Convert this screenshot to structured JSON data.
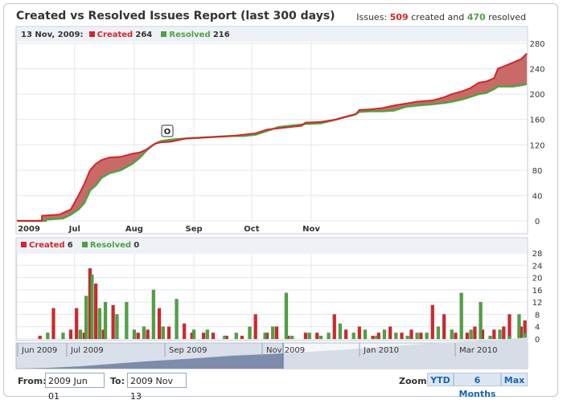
{
  "report": {
    "title": "Created vs Resolved Issues Report (last 300 days)",
    "summary_prefix": "Issues:",
    "created_count": "509",
    "summary_mid": "created and",
    "resolved_count": "470",
    "summary_suffix": "resolved"
  },
  "colors": {
    "created": "#d3262b",
    "resolved": "#4ea341",
    "fill": "#c0504d",
    "navigator": "#7e8cab"
  },
  "legend_top": {
    "date": "13 Nov, 2009:",
    "created_label": "Created",
    "created_value": "264",
    "resolved_label": "Resolved",
    "resolved_value": "216"
  },
  "legend_bottom": {
    "created_label": "Created",
    "created_value": "6",
    "resolved_label": "Resolved",
    "resolved_value": "0"
  },
  "flag_marker": "O",
  "navigator_labels": [
    "Jun 2009",
    "Jul 2009",
    "Sep 2009",
    "Nov 2009",
    "Jan 2010",
    "Mar 2010"
  ],
  "range": {
    "from_label": "From:",
    "from_value": "2009 Jun 01",
    "to_label": "To:",
    "to_value": "2009 Nov 13"
  },
  "zoom": {
    "label": "Zoom:",
    "buttons": [
      "YTD",
      "6 Months",
      "Max"
    ]
  },
  "chart_data": [
    {
      "type": "area",
      "title": "Created vs Resolved Issues Report (last 300 days)",
      "x_ticks": [
        "2009",
        "Jul",
        "Aug",
        "Sep",
        "Oct",
        "Nov"
      ],
      "y_ticks": [
        0,
        40,
        80,
        120,
        160,
        200,
        240,
        280
      ],
      "ylim": [
        0,
        280
      ],
      "grid": true,
      "x_unit": "days since 2009 Jun 01",
      "series": [
        {
          "name": "Created",
          "x": [
            0,
            13,
            13,
            22,
            28,
            32,
            35,
            38,
            41,
            44,
            48,
            54,
            60,
            64,
            67,
            70,
            72,
            75,
            80,
            88,
            94,
            100,
            106,
            112,
            118,
            124,
            130,
            136,
            142,
            148,
            150,
            158,
            166,
            172,
            176,
            178,
            184,
            190,
            196,
            202,
            208,
            216,
            222,
            226,
            232,
            236,
            240,
            244,
            248,
            250,
            254,
            258,
            262,
            265
          ],
          "values": [
            0,
            0,
            8,
            10,
            18,
            40,
            58,
            80,
            90,
            96,
            100,
            101,
            106,
            108,
            112,
            118,
            122,
            124,
            125,
            130,
            131,
            132,
            133,
            134,
            136,
            138,
            144,
            146,
            148,
            150,
            155,
            156,
            160,
            165,
            168,
            175,
            176,
            178,
            182,
            185,
            188,
            190,
            195,
            200,
            205,
            210,
            218,
            220,
            225,
            240,
            245,
            250,
            255,
            264
          ]
        },
        {
          "name": "Resolved",
          "x": [
            0,
            15,
            15,
            24,
            28,
            32,
            35,
            38,
            41,
            44,
            48,
            54,
            60,
            64,
            67,
            70,
            72,
            75,
            80,
            88,
            94,
            100,
            106,
            112,
            118,
            124,
            130,
            136,
            142,
            148,
            150,
            158,
            166,
            172,
            176,
            178,
            184,
            190,
            196,
            202,
            208,
            216,
            222,
            226,
            232,
            236,
            240,
            244,
            248,
            250,
            254,
            258,
            262,
            265
          ],
          "values": [
            0,
            0,
            2,
            4,
            10,
            18,
            28,
            48,
            56,
            68,
            75,
            80,
            90,
            100,
            110,
            118,
            122,
            126,
            128,
            130,
            131,
            132,
            133,
            134,
            134,
            136,
            142,
            148,
            150,
            152,
            153,
            154,
            160,
            165,
            168,
            172,
            173,
            173,
            174,
            180,
            182,
            184,
            186,
            188,
            192,
            196,
            200,
            202,
            208,
            212,
            212,
            212,
            214,
            216
          ]
        }
      ]
    },
    {
      "type": "bar",
      "y_ticks": [
        0,
        4,
        8,
        12,
        16,
        20,
        24,
        28
      ],
      "ylim": [
        0,
        28
      ],
      "grid": true,
      "x_unit": "days since 2009 Jun 01",
      "series": [
        {
          "name": "Created",
          "x": [
            12,
            19,
            28,
            31,
            35,
            38,
            41,
            45,
            50,
            63,
            68,
            74,
            79,
            87,
            91,
            97,
            102,
            109,
            117,
            124,
            130,
            135,
            141,
            150,
            156,
            165,
            171,
            178,
            185,
            188,
            194,
            200,
            205,
            210,
            216,
            222,
            228,
            234,
            238,
            242,
            248,
            253,
            256,
            262,
            264
          ],
          "values": [
            1,
            10,
            3,
            10,
            2,
            23,
            18,
            3,
            11,
            2,
            3,
            10,
            4,
            5,
            2,
            2,
            2,
            1,
            1,
            8,
            2,
            4,
            1,
            2,
            2,
            8,
            3,
            4,
            1,
            2,
            4,
            2,
            3,
            2,
            11,
            8,
            2,
            2,
            4,
            3,
            3,
            4,
            8,
            4,
            6
          ]
        },
        {
          "name": "Resolved",
          "x": [
            16,
            24,
            33,
            36,
            39,
            43,
            46,
            52,
            57,
            61,
            66,
            71,
            76,
            83,
            92,
            99,
            108,
            114,
            121,
            129,
            133,
            140,
            143,
            152,
            158,
            162,
            168,
            175,
            181,
            187,
            191,
            197,
            203,
            208,
            213,
            219,
            226,
            231,
            236,
            241,
            246,
            251,
            256,
            261,
            264
          ],
          "values": [
            2,
            2,
            3,
            14,
            21,
            10,
            12,
            8,
            12,
            3,
            4,
            16,
            4,
            13,
            3,
            3,
            1,
            2,
            4,
            2,
            4,
            15,
            1,
            2,
            1,
            2,
            5,
            2,
            3,
            1,
            3,
            2,
            1,
            2,
            2,
            4,
            3,
            15,
            3,
            12,
            1,
            3,
            1,
            8,
            2
          ]
        }
      ]
    }
  ]
}
